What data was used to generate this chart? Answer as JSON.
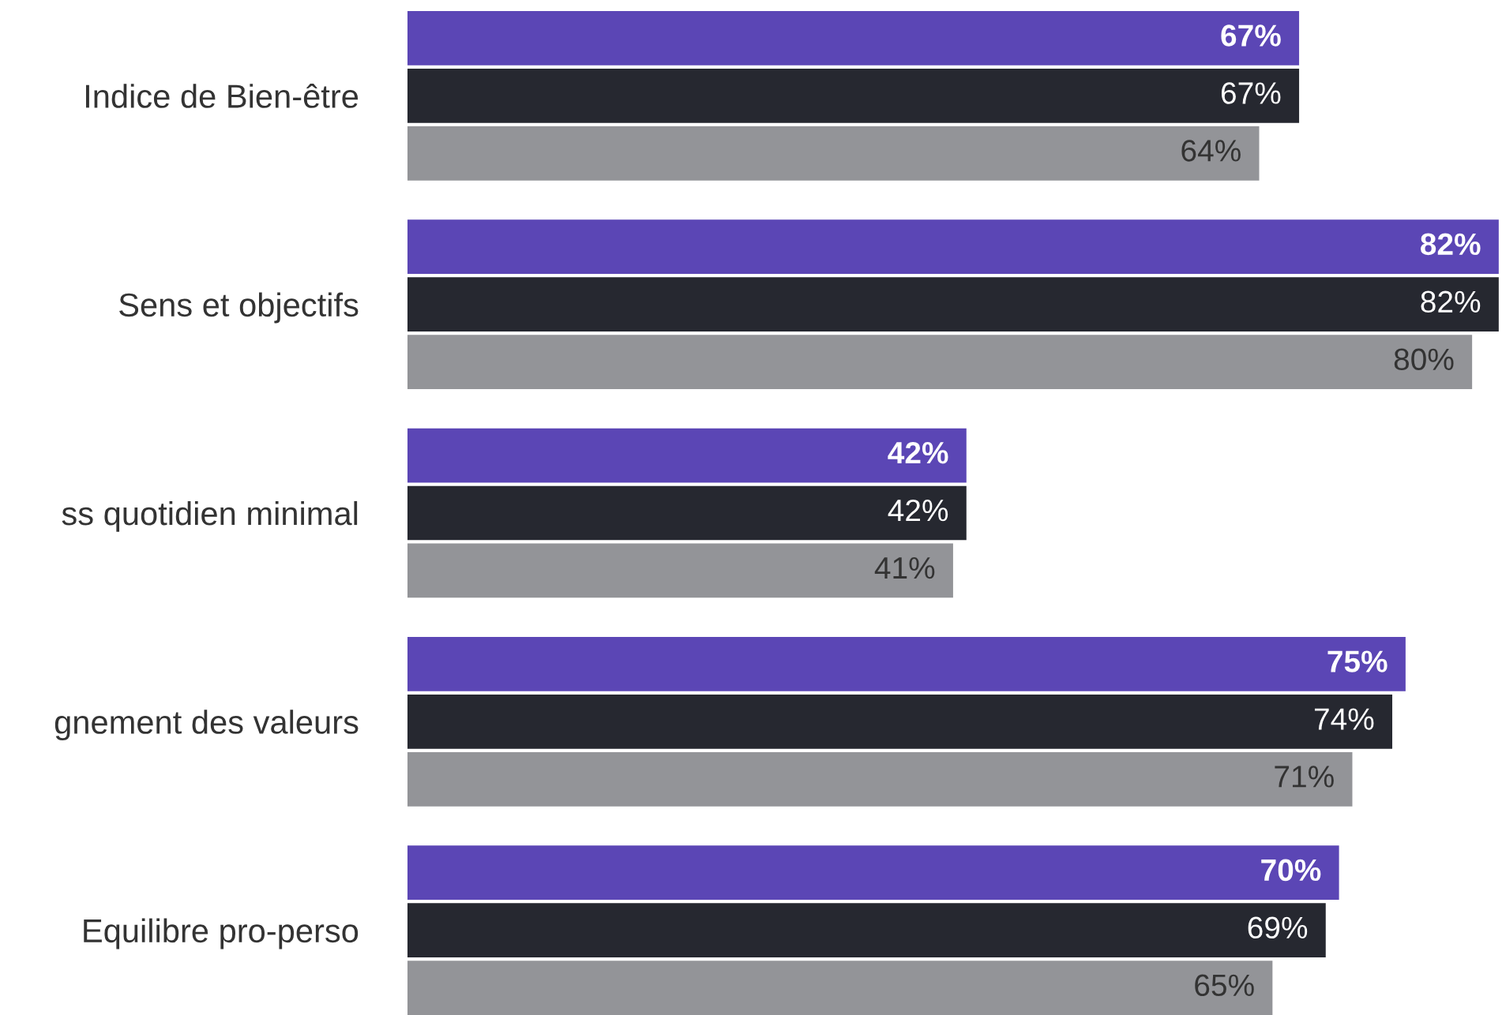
{
  "chart_data": {
    "type": "bar",
    "orientation": "horizontal",
    "categories": [
      "Indice de Bien-être",
      "Sens et objectifs",
      "ss quotidien minimal",
      "gnement des valeurs",
      "Equilibre pro-perso"
    ],
    "series": [
      {
        "color": "#5b46b5",
        "values": [
          67,
          82,
          42,
          75,
          70
        ],
        "value_labels": [
          "67%",
          "82%",
          "42%",
          "75%",
          "70%"
        ]
      },
      {
        "color": "#262830",
        "values": [
          67,
          82,
          42,
          74,
          69
        ],
        "value_labels": [
          "67%",
          "82%",
          "42%",
          "74%",
          "69%"
        ]
      },
      {
        "color": "#939498",
        "values": [
          64,
          80,
          41,
          71,
          65
        ],
        "value_labels": [
          "64%",
          "80%",
          "41%",
          "71%",
          "65%"
        ]
      }
    ],
    "grid": false,
    "legend": false
  }
}
